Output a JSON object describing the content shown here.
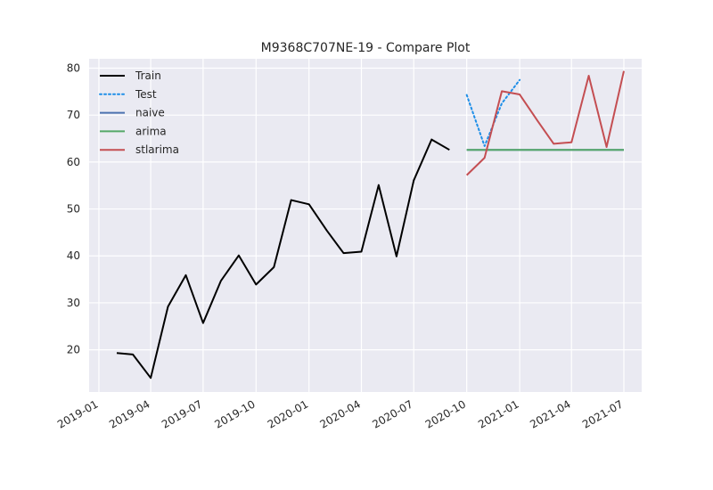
{
  "chart_data": {
    "type": "line",
    "title": "M9368C707NE-19 - Compare Plot",
    "xlabel": "",
    "ylabel": "",
    "x_tick_labels": [
      "2019-01",
      "2019-04",
      "2019-07",
      "2019-10",
      "2020-01",
      "2020-04",
      "2020-07",
      "2020-10",
      "2021-01",
      "2021-04",
      "2021-07"
    ],
    "y_ticks": [
      20,
      30,
      40,
      50,
      60,
      70,
      80
    ],
    "xlim": [
      "2018-12-15",
      "2021-08-01"
    ],
    "ylim": [
      11,
      82
    ],
    "grid": true,
    "legend_position": "top-left",
    "series": [
      {
        "name": "Train",
        "color": "#000000",
        "dash": "solid",
        "x": [
          "2019-02-01",
          "2019-03-01",
          "2019-04-01",
          "2019-05-01",
          "2019-06-01",
          "2019-07-01",
          "2019-08-01",
          "2019-09-01",
          "2019-10-01",
          "2019-11-01",
          "2019-12-01",
          "2020-01-01",
          "2020-02-01",
          "2020-03-01",
          "2020-04-01",
          "2020-05-01",
          "2020-06-01",
          "2020-07-01",
          "2020-08-01",
          "2020-09-01"
        ],
        "y": [
          19.3,
          19.0,
          14.0,
          29.2,
          35.9,
          25.7,
          34.7,
          40.1,
          33.9,
          37.6,
          51.9,
          51.0,
          45.4,
          40.6,
          40.9,
          55.1,
          39.9,
          56.1,
          64.8,
          62.6
        ]
      },
      {
        "name": "Test",
        "color": "#1f8fe8",
        "dash": "dotted",
        "x": [
          "2020-10-01",
          "2020-11-01",
          "2020-12-01",
          "2021-01-01"
        ],
        "y": [
          74.3,
          63.4,
          72.5,
          77.5
        ]
      },
      {
        "name": "naive",
        "color": "#4c72b0",
        "dash": "solid",
        "x": [
          "2020-10-01",
          "2020-11-01",
          "2020-12-01",
          "2021-01-01",
          "2021-02-01",
          "2021-03-01",
          "2021-04-01",
          "2021-05-01",
          "2021-06-01",
          "2021-07-01"
        ],
        "y": [
          62.6,
          62.6,
          62.6,
          62.6,
          62.6,
          62.6,
          62.6,
          62.6,
          62.6,
          62.6
        ]
      },
      {
        "name": "arima",
        "color": "#55a868",
        "dash": "solid",
        "x": [
          "2020-10-01",
          "2020-11-01",
          "2020-12-01",
          "2021-01-01",
          "2021-02-01",
          "2021-03-01",
          "2021-04-01",
          "2021-05-01",
          "2021-06-01",
          "2021-07-01"
        ],
        "y": [
          62.6,
          62.6,
          62.6,
          62.6,
          62.6,
          62.6,
          62.6,
          62.6,
          62.6,
          62.6
        ]
      },
      {
        "name": "stlarima",
        "color": "#c44e52",
        "dash": "solid",
        "x": [
          "2020-10-01",
          "2020-11-01",
          "2020-12-01",
          "2021-01-01",
          "2021-02-01",
          "2021-03-01",
          "2021-04-01",
          "2021-05-01",
          "2021-06-01",
          "2021-07-01"
        ],
        "y": [
          57.2,
          60.9,
          75.1,
          74.4,
          68.8,
          63.9,
          64.2,
          78.4,
          63.2,
          79.4
        ]
      }
    ]
  }
}
